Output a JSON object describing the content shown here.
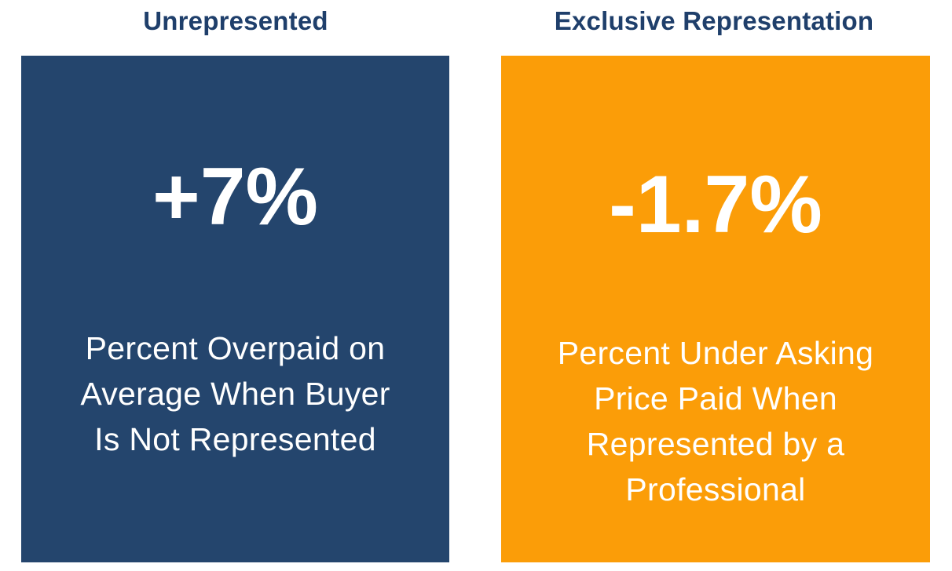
{
  "left": {
    "heading": "Unrepresented",
    "value": "+7%",
    "caption_lines": [
      "Percent Overpaid on",
      "Average When Buyer",
      "Is Not Represented"
    ]
  },
  "right": {
    "heading": "Exclusive Representation",
    "value": "-1.7%",
    "caption_lines": [
      "Percent Under Asking",
      "Price Paid When",
      "Represented by a",
      "Professional"
    ]
  },
  "colors": {
    "heading": "#1f3f6b",
    "left_card": "#24456d",
    "right_card": "#fb9d08",
    "card_text": "#ffffff"
  }
}
